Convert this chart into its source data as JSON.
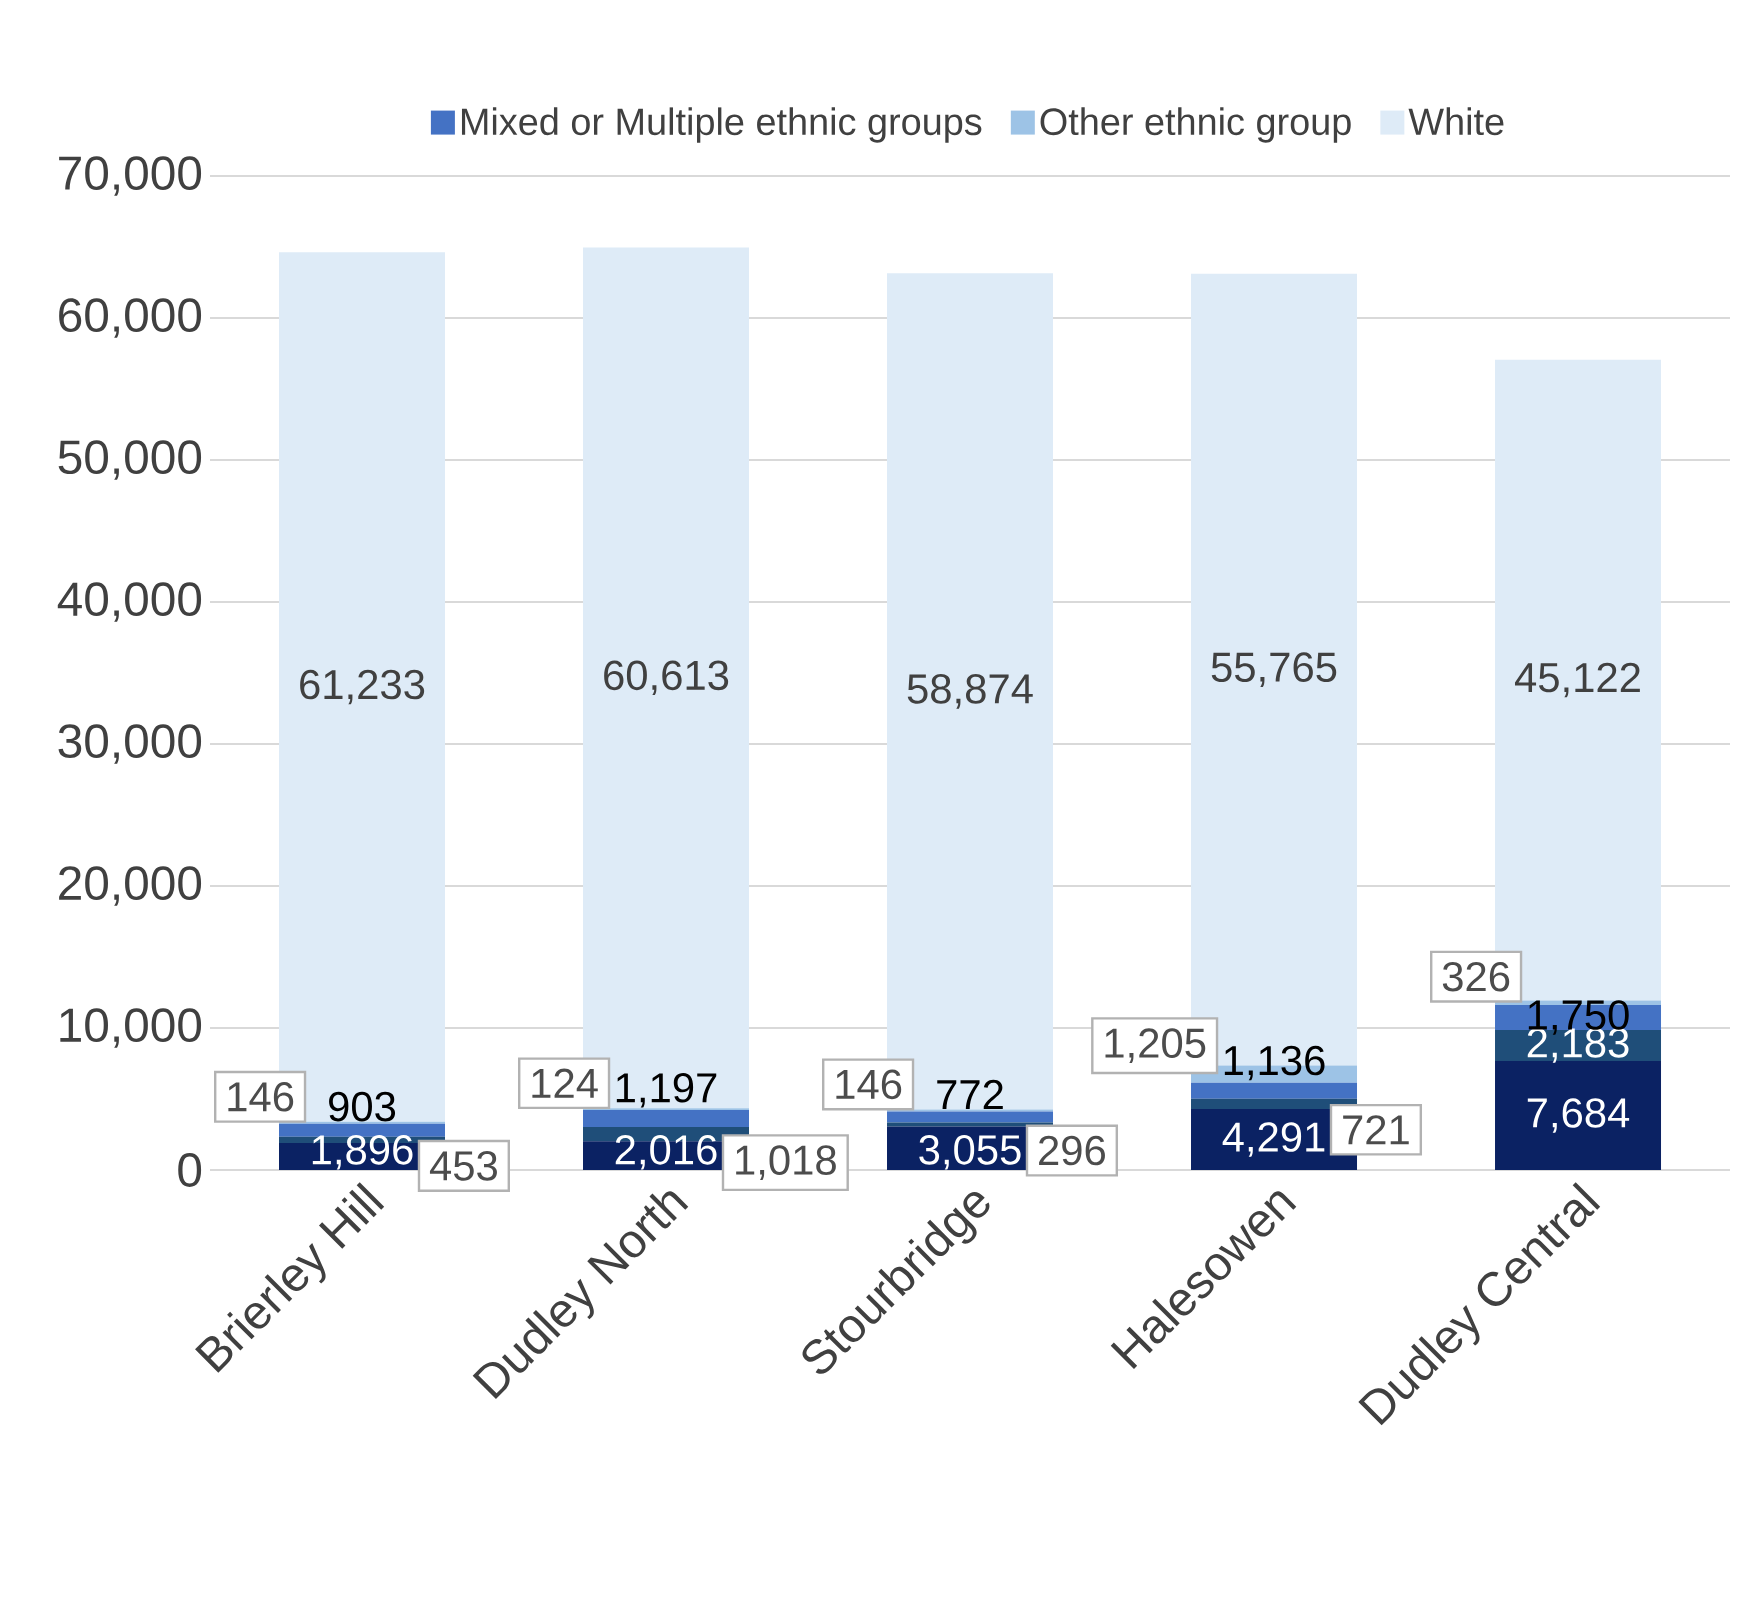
{
  "chart_data": {
    "type": "bar",
    "stacked": true,
    "categories": [
      "Brierley Hill",
      "Dudley North",
      "Stourbridge",
      "Halesowen",
      "Dudley Central"
    ],
    "series": [
      {
        "color": "#0b2263",
        "values": [
          1896,
          2016,
          3055,
          4291,
          7684
        ],
        "value_labels": [
          "1,896",
          "2,016",
          "3,055",
          "4,291",
          "7,684"
        ]
      },
      {
        "color": "#1f4e79",
        "values": [
          453,
          1018,
          296,
          721,
          2183
        ],
        "value_labels": [
          "453",
          "1,018",
          "296",
          "721",
          "2,183"
        ]
      },
      {
        "name": "Mixed or Multiple ethnic groups",
        "color": "#4472c4",
        "values": [
          903,
          1197,
          772,
          1136,
          1750
        ],
        "value_labels": [
          "903",
          "1,197",
          "772",
          "1,136",
          "1,750"
        ]
      },
      {
        "name": "Other ethnic group",
        "color": "#9dc3e6",
        "values": [
          146,
          124,
          146,
          1205,
          326
        ],
        "value_labels": [
          "146",
          "124",
          "146",
          "1,205",
          "326"
        ]
      },
      {
        "name": "White",
        "color": "#deebf7",
        "values": [
          61233,
          60613,
          58874,
          55765,
          45122
        ],
        "value_labels": [
          "61,233",
          "60,613",
          "58,874",
          "55,765",
          "45,122"
        ]
      }
    ],
    "ylim": [
      0,
      70000
    ],
    "yticks": [
      {
        "value": 0,
        "label": "0"
      },
      {
        "value": 10000,
        "label": "10,000"
      },
      {
        "value": 20000,
        "label": "20,000"
      },
      {
        "value": 30000,
        "label": "30,000"
      },
      {
        "value": 40000,
        "label": "40,000"
      },
      {
        "value": 50000,
        "label": "50,000"
      },
      {
        "value": 60000,
        "label": "60,000"
      },
      {
        "value": 70000,
        "label": "70,000"
      }
    ],
    "grid": "y",
    "legend": "top"
  }
}
